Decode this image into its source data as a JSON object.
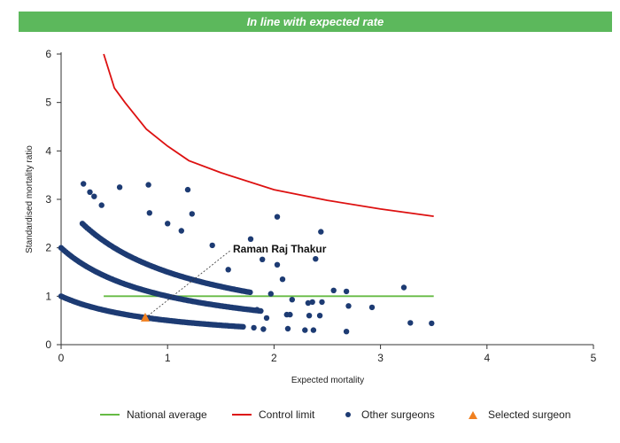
{
  "banner": {
    "text": "In line with expected rate",
    "color": "#5cb85c"
  },
  "annotation": {
    "label": "Raman Raj Thakur"
  },
  "legend": {
    "national_average": "National average",
    "control_limit": "Control limit",
    "other_surgeons": "Other surgeons",
    "selected_surgeon": "Selected surgeon"
  },
  "colors": {
    "national_average": "#66bb44",
    "control_limit": "#dd1111",
    "other_surgeons": "#1d3b73",
    "selected_surgeon": "#f08020"
  },
  "chart_data": {
    "type": "scatter",
    "title": "",
    "xlabel": "Expected mortality",
    "ylabel": "Standardised mortality ratio",
    "xlim": [
      0,
      5
    ],
    "ylim": [
      0,
      6
    ],
    "xticks": [
      "0",
      "1",
      "2",
      "3",
      "4",
      "5"
    ],
    "yticks": [
      "0",
      "1",
      "2",
      "3",
      "4",
      "5",
      "6"
    ],
    "grid": false,
    "legend_position": "bottom",
    "national_average": {
      "name": "National average",
      "value": 1,
      "x_range": [
        0.4,
        3.5
      ]
    },
    "control_limit": {
      "name": "Control limit",
      "x": [
        0.4,
        0.5,
        0.6,
        0.8,
        1.0,
        1.2,
        1.5,
        2.0,
        2.5,
        3.0,
        3.5
      ],
      "y": [
        6.0,
        5.3,
        5.0,
        4.45,
        4.1,
        3.8,
        3.55,
        3.2,
        2.98,
        2.8,
        2.65
      ]
    },
    "selected_surgeon": {
      "name": "Selected surgeon",
      "label": "Raman Raj Thakur",
      "x": 0.79,
      "y": 0.55
    },
    "other_surgeons": {
      "name": "Other surgeons",
      "curves": [
        {
          "k": 1,
          "x_range": [
            0.01,
            1.7
          ]
        },
        {
          "k": 2,
          "x_range": [
            0.01,
            1.9
          ]
        },
        {
          "k": 3,
          "x_range": [
            0.2,
            1.8
          ]
        }
      ],
      "scatter": [
        [
          0.21,
          3.32
        ],
        [
          0.27,
          3.15
        ],
        [
          0.31,
          3.06
        ],
        [
          0.38,
          2.88
        ],
        [
          0.55,
          3.25
        ],
        [
          0.82,
          3.3
        ],
        [
          0.83,
          2.72
        ],
        [
          1.0,
          2.5
        ],
        [
          1.13,
          2.35
        ],
        [
          1.19,
          3.2
        ],
        [
          1.23,
          2.7
        ],
        [
          1.42,
          2.05
        ],
        [
          1.57,
          1.55
        ],
        [
          1.78,
          2.18
        ],
        [
          1.89,
          1.76
        ],
        [
          2.03,
          2.64
        ],
        [
          2.03,
          1.65
        ],
        [
          2.12,
          0.62
        ],
        [
          2.13,
          0.33
        ],
        [
          2.17,
          0.93
        ],
        [
          2.29,
          0.3
        ],
        [
          2.33,
          0.6
        ],
        [
          2.36,
          0.88
        ],
        [
          2.39,
          1.77
        ],
        [
          2.44,
          2.33
        ],
        [
          2.43,
          0.6
        ],
        [
          2.45,
          0.88
        ],
        [
          2.56,
          1.12
        ],
        [
          2.68,
          1.1
        ],
        [
          2.68,
          0.27
        ],
        [
          2.7,
          0.8
        ],
        [
          2.92,
          0.77
        ],
        [
          3.22,
          1.18
        ],
        [
          3.28,
          0.45
        ],
        [
          3.48,
          0.44
        ],
        [
          1.81,
          0.35
        ],
        [
          1.9,
          0.32
        ],
        [
          1.93,
          0.55
        ],
        [
          2.37,
          0.3
        ],
        [
          1.97,
          1.05
        ],
        [
          1.84,
          0.72
        ],
        [
          2.08,
          1.35
        ],
        [
          2.32,
          0.86
        ],
        [
          2.15,
          0.62
        ]
      ]
    }
  }
}
